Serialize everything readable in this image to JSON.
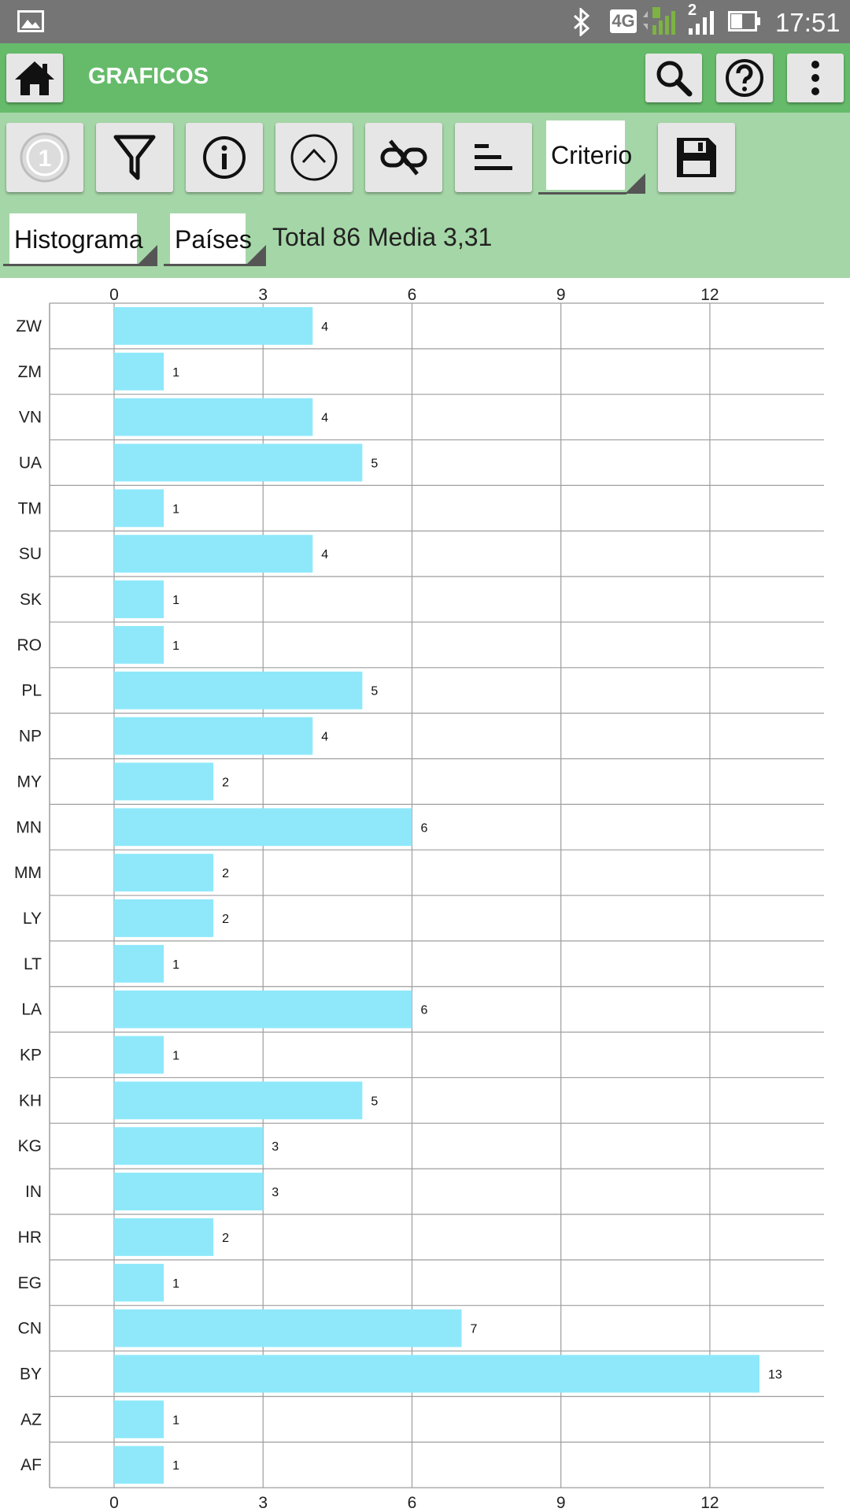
{
  "status_bar": {
    "network": "4G",
    "sim_slot": "2",
    "time": "17:51"
  },
  "app_bar": {
    "title": "GRAFICOS",
    "icons": [
      "home-icon",
      "search-icon",
      "help-icon",
      "more-vert-icon"
    ]
  },
  "toolbar": {
    "icons": [
      "coin-icon",
      "filter-icon",
      "info-icon",
      "chevron-up-icon",
      "unlink-icon",
      "sort-bars-icon",
      "save-icon"
    ],
    "criterio_label": "Criterio",
    "chart_type_value": "Histograma",
    "group_by_value": "Países",
    "stats_text": "Total 86 Media 3,31"
  },
  "colors": {
    "status_bar": "#757575",
    "app_bar": "#66bb6a",
    "toolbar": "#a5d6a7",
    "bar": "#8ee8fa"
  },
  "chart_data": {
    "type": "bar",
    "orientation": "horizontal",
    "categories": [
      "ZW",
      "ZM",
      "VN",
      "UA",
      "TM",
      "SU",
      "SK",
      "RO",
      "PL",
      "NP",
      "MY",
      "MN",
      "MM",
      "LY",
      "LT",
      "LA",
      "KP",
      "KH",
      "KG",
      "IN",
      "HR",
      "EG",
      "CN",
      "BY",
      "AZ",
      "AF"
    ],
    "values": [
      4,
      1,
      4,
      5,
      1,
      4,
      1,
      1,
      5,
      4,
      2,
      6,
      2,
      2,
      1,
      6,
      1,
      5,
      3,
      3,
      2,
      1,
      7,
      13,
      1,
      1
    ],
    "xticks": [
      0,
      3,
      6,
      9,
      12
    ],
    "xlim": [
      -1.3,
      14.3
    ],
    "grid": true,
    "data_labels": true,
    "axis_ticks_top_and_bottom": true
  }
}
